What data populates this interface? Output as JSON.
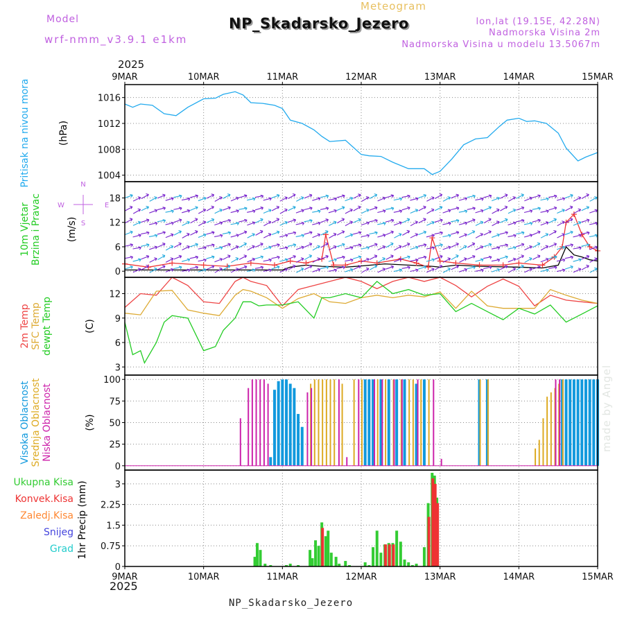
{
  "header": {
    "title": "NP_Skadarsko_Jezero",
    "subtitle": "Meteogram",
    "model_label": "Model",
    "model_name": "wrf-nmm_v3.9.1 e1km",
    "location_lines": [
      "lon,lat (19.15E, 42.28N)",
      "Nadmorska Visina 2m",
      "Nadmorska Visina u modelu 13.5067m"
    ],
    "year_top": "2025",
    "year_bottom": "2025",
    "footer": "NP_Skadarsko_Jezero",
    "credit": "made by Angel"
  },
  "compass": {
    "n": "N",
    "s": "S",
    "e": "E",
    "w": "W"
  },
  "colors": {
    "pressure": "#22aaee",
    "wind_speed": "#000000",
    "wind_gust": "#ee3333",
    "temp_2m": "#ee4444",
    "temp_sfc": "#ddaa33",
    "dewpoint": "#22cc22",
    "cloud_high": "#1199dd",
    "cloud_mid": "#ddaa22",
    "cloud_low": "#cc22aa",
    "precip_total": "#33cc33",
    "precip_conv": "#ee3333",
    "precip_frozen": "#ff8833",
    "snow": "#4444dd",
    "graupel": "#22cccc",
    "arrow_a": "#7722cc",
    "arrow_b": "#22aadd"
  },
  "chart_data": [
    {
      "type": "line",
      "panel": "pressure",
      "ylabel": [
        "Pritisak na nivou mora",
        "(hPa)"
      ],
      "yticks": [
        1004,
        1008,
        1012,
        1016
      ],
      "ylim": [
        1003,
        1018
      ],
      "x_days": [
        0,
        0.1,
        0.2,
        0.35,
        0.5,
        0.65,
        0.8,
        1.0,
        1.15,
        1.25,
        1.4,
        1.5,
        1.6,
        1.75,
        1.9,
        2.0,
        2.1,
        2.25,
        2.4,
        2.5,
        2.6,
        2.8,
        3.0,
        3.1,
        3.25,
        3.4,
        3.6,
        3.8,
        3.9,
        4.0,
        4.15,
        4.3,
        4.45,
        4.6,
        4.75,
        4.85,
        5.0,
        5.1,
        5.2,
        5.35,
        5.5,
        5.6,
        5.75,
        5.85,
        6.0
      ],
      "values": [
        1015,
        1014.5,
        1015,
        1014.8,
        1013.5,
        1013.2,
        1014.5,
        1015.8,
        1015.9,
        1016.5,
        1016.9,
        1016.4,
        1015.2,
        1015.1,
        1014.8,
        1014.3,
        1012.5,
        1012,
        1011,
        1010,
        1009.2,
        1009.4,
        1007.2,
        1007,
        1006.9,
        1006,
        1005,
        1005,
        1004.1,
        1004.6,
        1006.5,
        1008.7,
        1009.6,
        1009.8,
        1011.5,
        1012.5,
        1012.8,
        1012.3,
        1012.4,
        1012,
        1010.5,
        1008.2,
        1006.2,
        1006.8,
        1007.5
      ],
      "grid": true
    },
    {
      "type": "line",
      "panel": "wind",
      "ylabel": [
        "10m Vjetar",
        "Brzina i Pravac",
        "(m/s)"
      ],
      "yticks": [
        0,
        6,
        12,
        18
      ],
      "ylim": [
        -1.5,
        22
      ],
      "series": [
        {
          "name": "speed",
          "x_days": [
            0,
            0.5,
            1.0,
            1.5,
            2.0,
            2.1,
            2.3,
            2.5,
            2.8,
            3.0,
            3.3,
            3.6,
            3.9,
            4.0,
            4.2,
            4.5,
            5.0,
            5.3,
            5.5,
            5.6,
            5.7,
            5.8,
            5.9,
            6.0
          ],
          "values": [
            0.3,
            0.3,
            0.3,
            0.3,
            0.3,
            1.0,
            1.5,
            1.2,
            1.0,
            1.3,
            1.8,
            1.5,
            1.2,
            1.0,
            1.5,
            1.2,
            1.0,
            0.8,
            1.5,
            6.0,
            4.0,
            3.5,
            2.8,
            2.5
          ]
        },
        {
          "name": "gust",
          "x_days": [
            0,
            0.3,
            0.6,
            1.0,
            1.3,
            1.6,
            1.9,
            2.1,
            2.3,
            2.5,
            2.55,
            2.65,
            2.8,
            3.0,
            3.2,
            3.5,
            3.7,
            3.85,
            3.9,
            4.0,
            4.2,
            4.5,
            4.8,
            5.0,
            5.3,
            5.45,
            5.55,
            5.6,
            5.7,
            5.8,
            5.9,
            6.0
          ],
          "values": [
            1.8,
            1.0,
            2.0,
            1.5,
            1.2,
            2.0,
            1.5,
            2.5,
            2.0,
            3.0,
            9.0,
            1.5,
            1.5,
            2.5,
            2.0,
            3.0,
            2.0,
            1.0,
            8.2,
            2.5,
            2.0,
            1.5,
            1.5,
            2.0,
            1.5,
            3.5,
            6.0,
            12.0,
            14.0,
            9.0,
            6.0,
            5.0
          ]
        }
      ],
      "grid": true
    },
    {
      "type": "line",
      "panel": "temperature",
      "ylabel": [
        "2m Temp",
        "SFC Temp",
        "dewpt Temp",
        "(C)"
      ],
      "yticks": [
        3,
        6,
        9,
        12
      ],
      "ylim": [
        2,
        14
      ],
      "series": [
        {
          "name": "2m Temp",
          "x_days": [
            0,
            0.2,
            0.4,
            0.6,
            0.8,
            1.0,
            1.2,
            1.4,
            1.5,
            1.6,
            1.8,
            2.0,
            2.2,
            2.4,
            2.6,
            2.8,
            3.0,
            3.2,
            3.4,
            3.6,
            3.8,
            4.0,
            4.2,
            4.4,
            4.6,
            4.8,
            5.0,
            5.2,
            5.4,
            5.6,
            5.8,
            6.0
          ],
          "values": [
            10.3,
            12,
            11.8,
            14,
            13,
            11,
            10.8,
            13.5,
            14,
            13.5,
            13,
            10.5,
            12.5,
            13,
            13.5,
            14,
            13.5,
            12.6,
            13.5,
            14,
            13.5,
            14,
            13,
            11.6,
            12.9,
            13.8,
            12.9,
            10.5,
            11.8,
            11.2,
            11,
            10.8
          ]
        },
        {
          "name": "SFC Temp",
          "x_days": [
            0,
            0.2,
            0.4,
            0.6,
            0.8,
            1.0,
            1.2,
            1.4,
            1.5,
            1.6,
            1.8,
            2.0,
            2.2,
            2.4,
            2.6,
            2.8,
            3.0,
            3.2,
            3.4,
            3.6,
            3.8,
            4.0,
            4.2,
            4.4,
            4.6,
            4.8,
            5.0,
            5.2,
            5.4,
            5.6,
            5.8,
            6.0
          ],
          "values": [
            9.6,
            9.4,
            12.3,
            12.4,
            10.0,
            9.6,
            9.3,
            11.8,
            12.5,
            12.3,
            11.5,
            10.2,
            11.4,
            12,
            11,
            10.8,
            11.5,
            11.8,
            11.5,
            11.8,
            11.6,
            12.2,
            10.2,
            12.3,
            10.5,
            10.2,
            10.2,
            10.2,
            12.5,
            11.8,
            11.2,
            10.8
          ]
        },
        {
          "name": "dewpt Temp",
          "x_days": [
            0,
            0.1,
            0.2,
            0.25,
            0.4,
            0.5,
            0.6,
            0.8,
            1.0,
            1.15,
            1.25,
            1.4,
            1.5,
            1.6,
            1.7,
            1.8,
            2.0,
            2.2,
            2.4,
            2.5,
            2.6,
            2.8,
            3.0,
            3.2,
            3.4,
            3.6,
            3.8,
            4.0,
            4.2,
            4.4,
            4.6,
            4.8,
            5.0,
            5.2,
            5.4,
            5.6,
            5.8,
            6.0
          ],
          "values": [
            8.5,
            4.5,
            5,
            3.5,
            6,
            8.5,
            9.3,
            9,
            5,
            5.5,
            7.5,
            9,
            11,
            11,
            10.5,
            10.6,
            10.6,
            11,
            9,
            11.5,
            11.5,
            12,
            11.5,
            13.5,
            12,
            12.5,
            11.8,
            12,
            9.8,
            10.8,
            9.8,
            8.8,
            10.2,
            9.5,
            10.6,
            8.5,
            9.5,
            10.5
          ]
        }
      ],
      "grid": true
    },
    {
      "type": "bar",
      "panel": "clouds",
      "ylabel": [
        "Visoka Oblacnost",
        "Srednja Oblacnost",
        "Niska Oblacnost",
        "(%)"
      ],
      "yticks": [
        0,
        25,
        50,
        75,
        100
      ],
      "ylim": [
        -5,
        105
      ],
      "series": [
        {
          "name": "Visoka Oblacnost",
          "x_days": [
            1.85,
            1.9,
            1.95,
            2.0,
            2.05,
            2.1,
            2.15,
            2.2,
            2.25,
            3.05,
            3.1,
            3.15,
            3.25,
            3.35,
            3.45,
            3.55,
            3.7,
            3.8,
            4.5,
            4.6,
            5.55,
            5.6,
            5.65,
            5.7,
            5.75,
            5.8,
            5.85,
            5.9,
            5.95,
            6.0
          ],
          "values": [
            10,
            88,
            98,
            100,
            100,
            95,
            90,
            60,
            45,
            100,
            100,
            100,
            100,
            100,
            100,
            100,
            95,
            100,
            100,
            100,
            100,
            100,
            100,
            100,
            100,
            100,
            100,
            100,
            100,
            100
          ]
        },
        {
          "name": "Srednja Oblacnost",
          "x_days": [
            2.35,
            2.4,
            2.45,
            2.5,
            2.55,
            2.6,
            2.65,
            2.75,
            2.9,
            3.0,
            3.2,
            3.3,
            3.4,
            3.5,
            3.6,
            3.65,
            3.75,
            3.85,
            4.5,
            4.6,
            5.2,
            5.25,
            5.3,
            5.35,
            5.4,
            5.45,
            5.5,
            5.55
          ],
          "values": [
            95,
            100,
            100,
            100,
            100,
            100,
            100,
            95,
            100,
            100,
            100,
            100,
            100,
            100,
            100,
            100,
            100,
            100,
            100,
            100,
            20,
            30,
            55,
            80,
            85,
            90,
            95,
            100
          ]
        },
        {
          "name": "Niska Oblacnost",
          "x_days": [
            1.45,
            1.55,
            1.6,
            1.65,
            1.7,
            1.75,
            1.8,
            2.3,
            2.35,
            2.7,
            2.8,
            2.95,
            3.15,
            3.25,
            3.4,
            3.5,
            3.7,
            3.9,
            4.0,
            5.45,
            5.5
          ],
          "values": [
            55,
            90,
            100,
            100,
            100,
            100,
            95,
            85,
            90,
            100,
            10,
            100,
            100,
            100,
            100,
            100,
            100,
            100,
            8,
            100,
            100
          ]
        }
      ],
      "grid": true
    },
    {
      "type": "bar",
      "panel": "precipitation",
      "ylabel": [
        "Ukupna Kisa",
        "Konvek.Kisa",
        "Zaledj.Kisa",
        "Snijeg",
        "Grad",
        "1hr Precip (mm)"
      ],
      "yticks": [
        0,
        0.75,
        1.5,
        2.25,
        3
      ],
      "ylim": [
        0,
        3.5
      ],
      "series": [
        {
          "name": "Ukupna Kisa",
          "x_days": [
            1.65,
            1.68,
            1.72,
            1.78,
            1.85,
            2.05,
            2.1,
            2.2,
            2.35,
            2.38,
            2.42,
            2.46,
            2.5,
            2.55,
            2.58,
            2.62,
            2.68,
            2.72,
            2.8,
            2.85,
            3.05,
            3.1,
            3.15,
            3.2,
            3.25,
            3.3,
            3.35,
            3.4,
            3.45,
            3.5,
            3.55,
            3.6,
            3.65,
            3.7,
            3.8,
            3.85,
            3.9,
            3.93,
            3.96
          ],
          "values": [
            0.35,
            0.85,
            0.6,
            0.1,
            0.05,
            0.05,
            0.1,
            0.05,
            0.6,
            0.3,
            0.95,
            0.75,
            1.6,
            1.1,
            1.3,
            0.5,
            0.35,
            0.1,
            0.2,
            0.05,
            0.15,
            0.05,
            0.7,
            1.3,
            0.5,
            0.8,
            0.85,
            0.85,
            1.3,
            0.9,
            0.25,
            0.15,
            0.05,
            0.1,
            0.7,
            2.3,
            3.4,
            3.3,
            2.5
          ]
        },
        {
          "name": "Konvek.Kisa",
          "x_days": [
            2.5,
            3.3,
            3.35,
            3.4,
            3.85,
            3.9,
            3.93,
            3.96
          ],
          "values": [
            1.4,
            0.8,
            0.8,
            0.8,
            1.8,
            3.2,
            3.0,
            2.3
          ]
        }
      ],
      "grid": true
    }
  ],
  "x_axis": {
    "range_days": [
      0,
      6
    ],
    "tick_labels": [
      "9MAR",
      "10MAR",
      "11MAR",
      "12MAR",
      "13MAR",
      "14MAR",
      "15MAR"
    ]
  }
}
